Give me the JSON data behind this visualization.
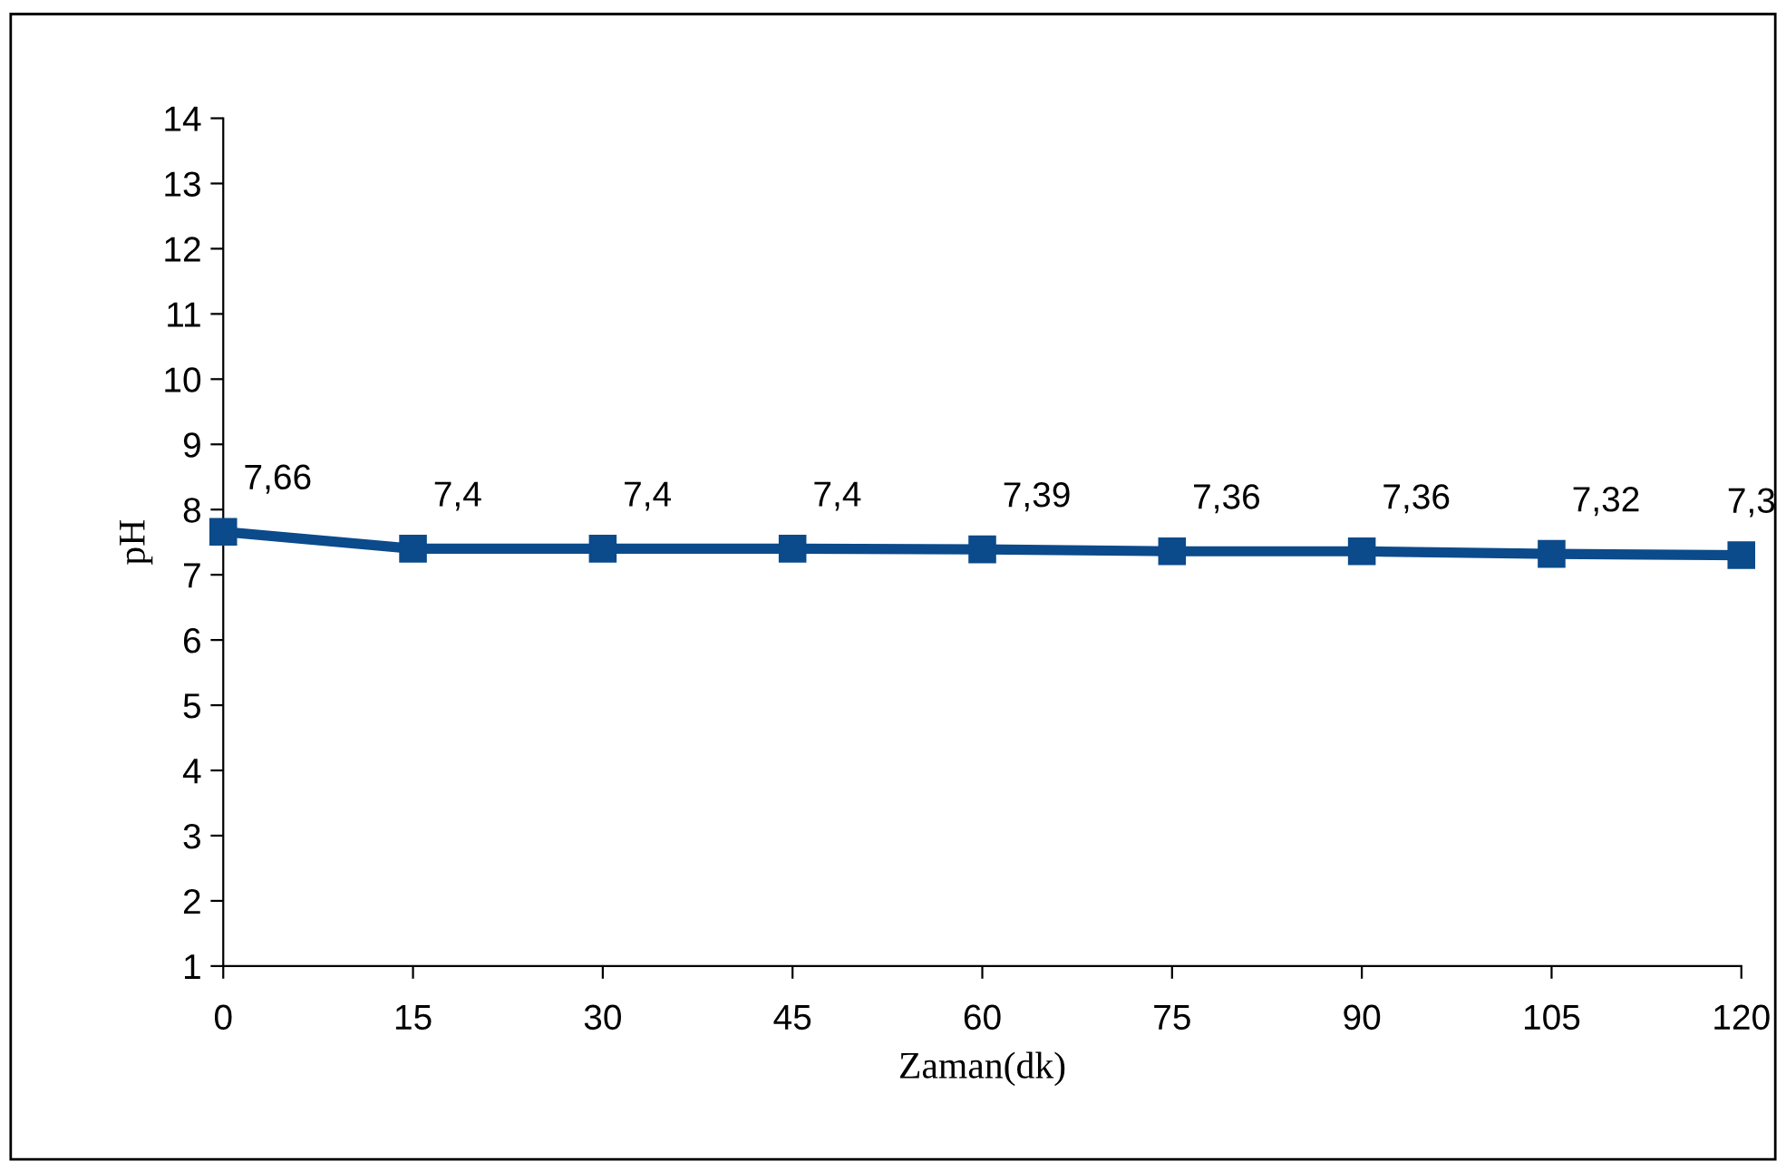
{
  "chart_data": {
    "type": "line",
    "xlabel": "Zaman(dk)",
    "ylabel": "pH",
    "x": [
      0,
      15,
      30,
      45,
      60,
      75,
      90,
      105,
      120
    ],
    "series": [
      {
        "color": "#0b4a8b",
        "values": [
          7.66,
          7.4,
          7.4,
          7.4,
          7.39,
          7.36,
          7.36,
          7.32,
          7.3
        ],
        "value_labels": [
          "7,66",
          "7,4",
          "7,4",
          "7,4",
          "7,39",
          "7,36",
          "7,36",
          "7,32",
          "7,3"
        ]
      }
    ],
    "xlim": [
      0,
      120
    ],
    "xticks": [
      0,
      15,
      30,
      45,
      60,
      75,
      90,
      105,
      120
    ],
    "ylim": [
      1,
      14
    ],
    "yticks": [
      1,
      2,
      3,
      4,
      5,
      6,
      7,
      8,
      9,
      10,
      11,
      12,
      13,
      14
    ],
    "marker": "square",
    "line_style": "solid",
    "grid": false,
    "legend": false
  }
}
